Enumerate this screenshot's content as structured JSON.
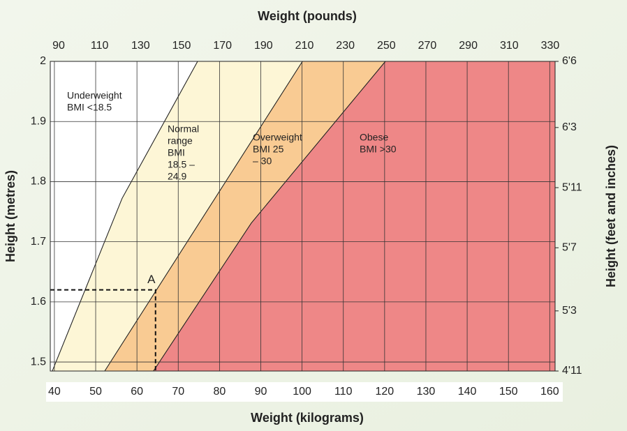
{
  "chart_data": {
    "type": "zones",
    "x_label": "Weight (kilograms)",
    "x2_label": "Weight (pounds)",
    "y_label": "Height (metres)",
    "y2_label": "Height (feet and inches)",
    "xlim": [
      39,
      161.3
    ],
    "xticks": [
      40,
      50,
      60,
      70,
      80,
      90,
      100,
      110,
      120,
      130,
      140,
      150,
      160
    ],
    "x2lim": [
      85.9,
      332.4
    ],
    "x2ticks": [
      90,
      110,
      130,
      150,
      170,
      190,
      210,
      230,
      250,
      270,
      290,
      310,
      330
    ],
    "ylim": [
      1.485,
      2.0
    ],
    "yticks": [
      {
        "value": 2.0,
        "label": "2"
      },
      1.9,
      1.8,
      1.7,
      1.6,
      1.5
    ],
    "y2ticks": [
      {
        "value": 2.0,
        "label": "6'6"
      },
      {
        "value": 1.89,
        "label": "6'3"
      },
      {
        "value": 1.79,
        "label": "5'11"
      },
      {
        "value": 1.69,
        "label": "5'7"
      },
      {
        "value": 1.585,
        "label": "5'3"
      },
      {
        "value": 1.485,
        "label": "4'11"
      }
    ],
    "grid": true,
    "zones": [
      {
        "label": [
          "Underweight",
          "BMI <18.5"
        ],
        "color": "#ffffff",
        "x": [
          39,
          39.5,
          56.4,
          74.7,
          39
        ],
        "y": [
          1.485,
          1.485,
          1.772,
          2.0,
          2.0
        ]
      },
      {
        "label": [
          "Normal",
          "range",
          "BMI",
          "18.5 –",
          "24.9"
        ],
        "color": "#fdf6d6",
        "x": [
          39.5,
          52.2,
          100.1,
          74.7,
          56.4
        ],
        "y": [
          1.485,
          1.485,
          2.0,
          2.0,
          1.772
        ]
      },
      {
        "label": [
          "Overweight",
          "BMI  25",
          "– 30"
        ],
        "color": "#f9cb93",
        "x": [
          52.2,
          64.0,
          87.7,
          120.2,
          100.1
        ],
        "y": [
          1.485,
          1.485,
          1.731,
          2.0,
          2.0
        ]
      },
      {
        "label": [
          "Obese",
          "BMI >30"
        ],
        "color": "#ee8787",
        "x": [
          64.0,
          161.3,
          161.3,
          120.2,
          87.7
        ],
        "y": [
          1.485,
          1.485,
          2.0,
          2.0,
          1.731
        ]
      }
    ],
    "marker": {
      "label": "A",
      "x": 64.5,
      "y": 1.62
    }
  }
}
